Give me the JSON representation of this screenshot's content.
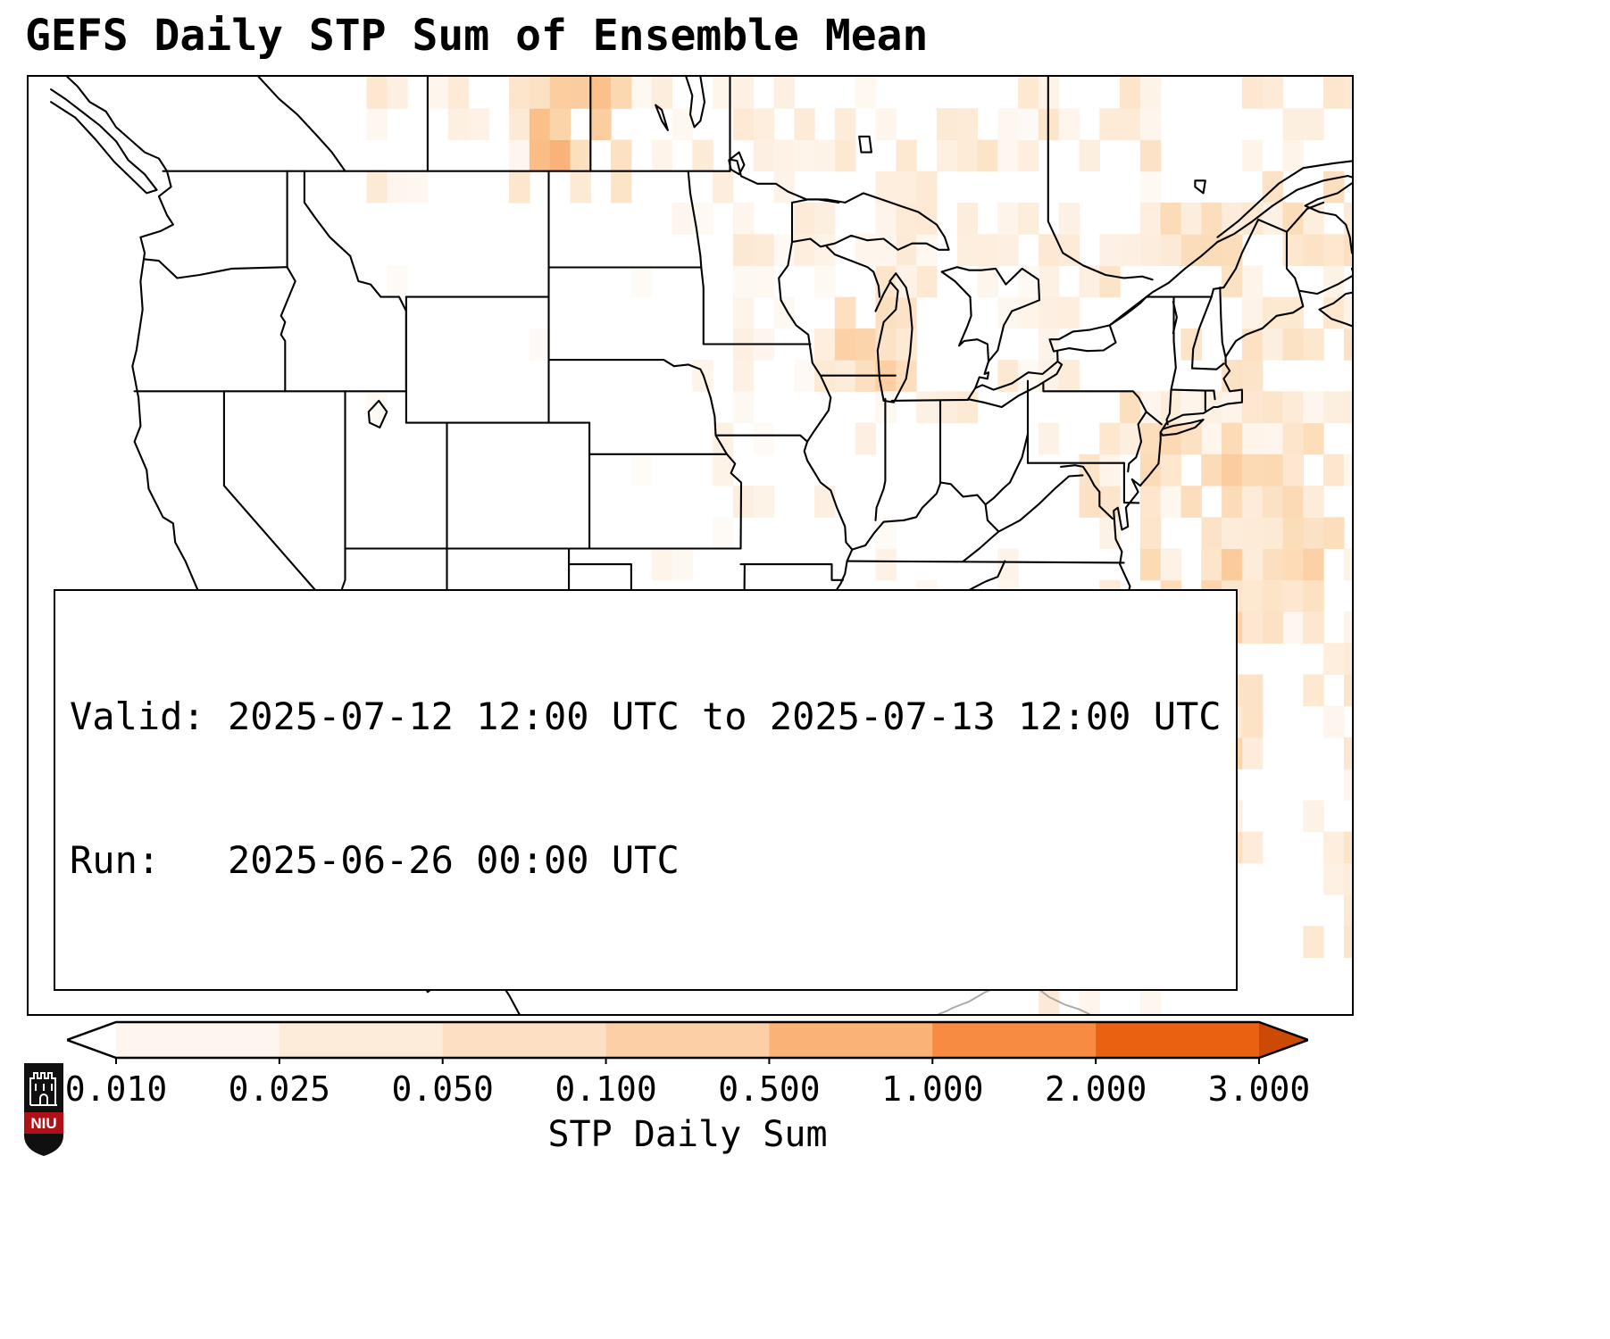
{
  "title": "GEFS Daily STP Sum of Ensemble Mean",
  "info_box": {
    "valid_line": "Valid: 2025-07-12 12:00 UTC to 2025-07-13 12:00 UTC",
    "run_line": "Run:   2025-06-26 00:00 UTC"
  },
  "colorbar": {
    "label": "STP Daily Sum",
    "ticks": [
      "0.010",
      "0.025",
      "0.050",
      "0.100",
      "0.500",
      "1.000",
      "2.000",
      "3.000"
    ],
    "under_color": "#ffffff",
    "over_color": "#cc4a04",
    "segment_colors": [
      "#fef6ee",
      "#fdecd9",
      "#fde0c4",
      "#fccfa6",
      "#fbb277",
      "#f78b42",
      "#ea6211"
    ]
  },
  "logo": {
    "text": "NIU",
    "shield_color": "#101010",
    "banner_color": "#b01116"
  },
  "chart_data": {
    "type": "heatmap",
    "title": "GEFS Daily STP Sum of Ensemble Mean",
    "colorbar_label": "STP Daily Sum",
    "colorbar_ticks": [
      0.01,
      0.025,
      0.05,
      0.1,
      0.5,
      1.0,
      2.0,
      3.0
    ],
    "valid": "2025-07-12 12:00 UTC to 2025-07-13 12:00 UTC",
    "run": "2025-06-26 00:00 UTC",
    "map_extent": {
      "lon": [
        -129.6,
        -64.6
      ],
      "lat": [
        22.2,
        52.0
      ]
    },
    "grid_resolution_deg": 1,
    "ramp": [
      [
        0,
        "#ffffff"
      ],
      [
        0.18,
        "#fdeede"
      ],
      [
        0.38,
        "#fcdcb8"
      ],
      [
        0.58,
        "#fbbd86"
      ],
      [
        0.78,
        "#f49353"
      ],
      [
        1,
        "#e3671a"
      ]
    ],
    "shaded_regions": [
      {
        "lon": [
          -113,
          -99
        ],
        "lat": [
          48,
          52
        ],
        "density": 0.5,
        "t": [
          0.06,
          0.3
        ]
      },
      {
        "lon": [
          -104.5,
          -100.5
        ],
        "lat": [
          49,
          52
        ],
        "density": 0.85,
        "t": [
          0.3,
          0.65
        ]
      },
      {
        "lon": [
          -99,
          -89
        ],
        "lat": [
          47.5,
          52
        ],
        "density": 0.38,
        "t": [
          0.05,
          0.25
        ]
      },
      {
        "lon": [
          -89,
          -74
        ],
        "lat": [
          45.5,
          52
        ],
        "density": 0.5,
        "t": [
          0.06,
          0.3
        ]
      },
      {
        "lon": [
          -75,
          -71.5
        ],
        "lat": [
          46,
          49
        ],
        "density": 0.75,
        "t": [
          0.15,
          0.5
        ]
      },
      {
        "lon": [
          -70,
          -63.5
        ],
        "lat": [
          47.5,
          52
        ],
        "density": 0.6,
        "t": [
          0.1,
          0.4
        ]
      },
      {
        "lon": [
          -82,
          -78
        ],
        "lat": [
          42.8,
          45.5
        ],
        "density": 0.4,
        "t": [
          0.06,
          0.3
        ]
      },
      {
        "lon": [
          -71,
          -63.5
        ],
        "lat": [
          43,
          47.5
        ],
        "density": 0.55,
        "t": [
          0.1,
          0.42
        ]
      },
      {
        "lon": [
          -74,
          -69
        ],
        "lat": [
          40.5,
          43.5
        ],
        "density": 0.5,
        "t": [
          0.08,
          0.35
        ]
      },
      {
        "lon": [
          -95,
          -86.5
        ],
        "lat": [
          42,
          46.5
        ],
        "density": 0.42,
        "t": [
          0.06,
          0.3
        ]
      },
      {
        "lon": [
          -89.5,
          -86.5
        ],
        "lat": [
          42.5,
          44.3
        ],
        "density": 0.8,
        "t": [
          0.2,
          0.5
        ]
      },
      {
        "lon": [
          -86.5,
          -82.5
        ],
        "lat": [
          41.5,
          45.5
        ],
        "density": 0.3,
        "t": [
          0.05,
          0.25
        ]
      },
      {
        "lon": [
          -96,
          -87
        ],
        "lat": [
          38.5,
          42
        ],
        "density": 0.25,
        "t": [
          0.04,
          0.18
        ]
      },
      {
        "lon": [
          -77.5,
          -63.5
        ],
        "lat": [
          34.5,
          41.5
        ],
        "density": 0.55,
        "t": [
          0.08,
          0.4
        ]
      },
      {
        "lon": [
          -71.5,
          -66.5
        ],
        "lat": [
          34.5,
          39.5
        ],
        "density": 0.85,
        "t": [
          0.18,
          0.5
        ]
      },
      {
        "lon": [
          -81.5,
          -69.5
        ],
        "lat": [
          27.5,
          34.5
        ],
        "density": 0.5,
        "t": [
          0.07,
          0.35
        ]
      },
      {
        "lon": [
          -73.5,
          -69.5
        ],
        "lat": [
          29.5,
          33
        ],
        "density": 0.8,
        "t": [
          0.15,
          0.45
        ]
      },
      {
        "lon": [
          -90,
          -81.5
        ],
        "lat": [
          24.5,
          29.5
        ],
        "density": 0.3,
        "t": [
          0.04,
          0.2
        ]
      },
      {
        "lon": [
          -80.5,
          -73.5
        ],
        "lat": [
          22,
          28
        ],
        "density": 0.5,
        "t": [
          0.07,
          0.3
        ]
      },
      {
        "lon": [
          -66.5,
          -63.5
        ],
        "lat": [
          24,
          34.5
        ],
        "density": 0.5,
        "t": [
          0.08,
          0.3
        ]
      },
      {
        "lon": [
          -105,
          -95
        ],
        "lat": [
          35,
          46
        ],
        "density": 0.1,
        "t": [
          0.03,
          0.12
        ]
      },
      {
        "lon": [
          -88,
          -79.5
        ],
        "lat": [
          35.5,
          42
        ],
        "density": 0.16,
        "t": [
          0.03,
          0.15
        ]
      },
      {
        "lon": [
          -114,
          -105
        ],
        "lat": [
          35,
          46
        ],
        "density": 0.06,
        "t": [
          0.03,
          0.1
        ]
      },
      {
        "lon": [
          -99,
          -90
        ],
        "lat": [
          29.5,
          35
        ],
        "density": 0.12,
        "t": [
          0.03,
          0.12
        ]
      },
      {
        "lon": [
          -124,
          -117
        ],
        "lat": [
          46,
          49.5
        ],
        "density": 0.06,
        "t": [
          0.03,
          0.1
        ]
      }
    ]
  }
}
